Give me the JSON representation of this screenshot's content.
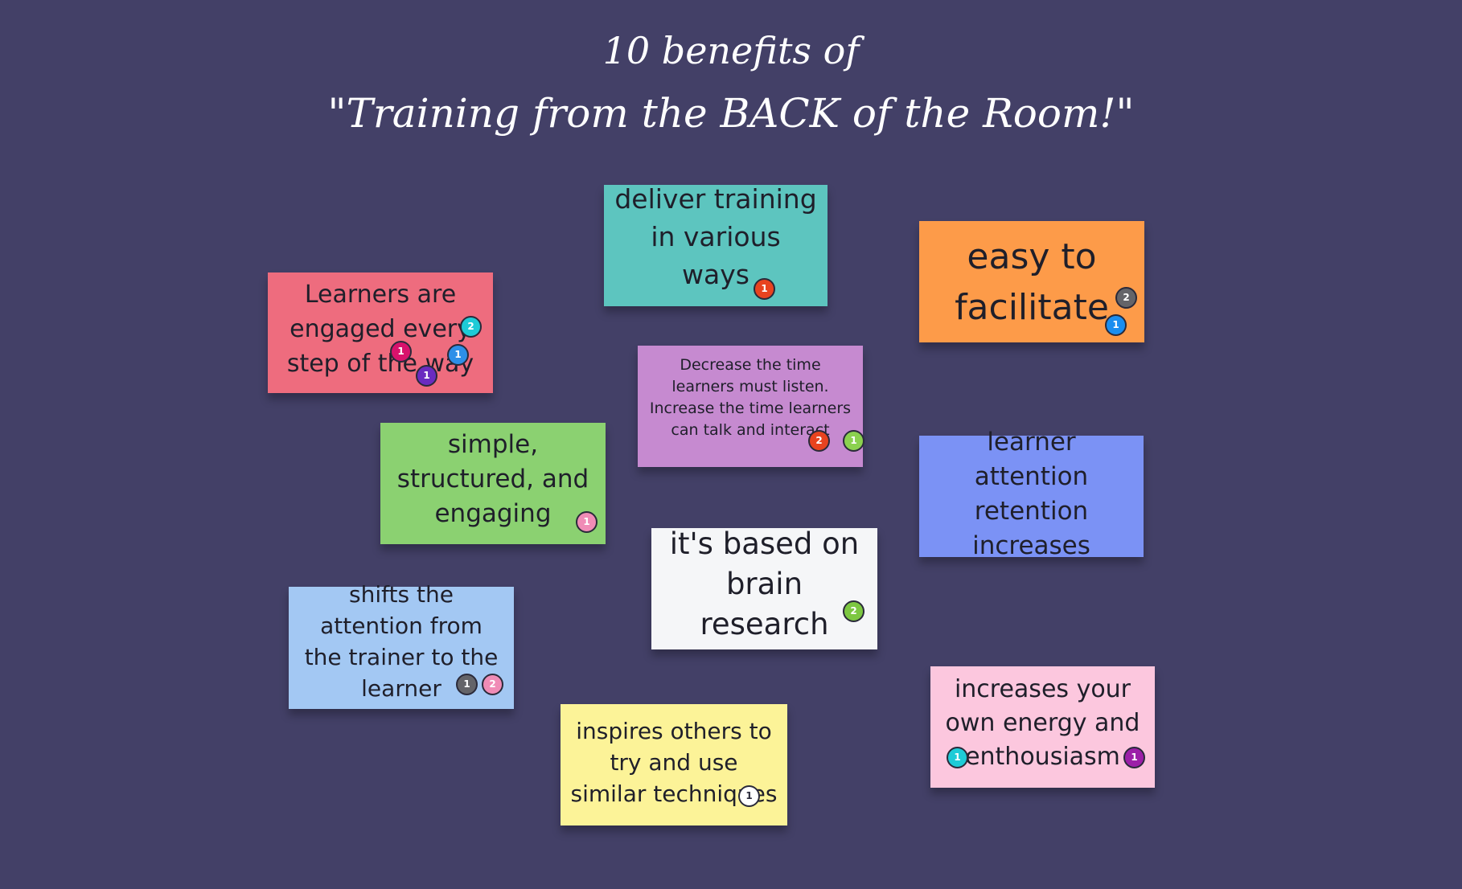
{
  "title": {
    "line1": "10 benefits of",
    "line2": "\"Training from the BACK of the Room!\""
  },
  "colors": {
    "background": "#434067",
    "note_red": "#ee6c7e",
    "note_teal": "#5dc5bf",
    "note_orange": "#fd9b49",
    "note_purple": "#c68ad0",
    "note_green": "#8bd171",
    "note_blue": "#7b92f5",
    "note_white": "#f5f6f8",
    "note_lightblue": "#a3c8f3",
    "note_yellow": "#fcf398",
    "note_pink": "#fcc7de"
  },
  "notes": [
    {
      "text": "Learners are engaged every step of the way",
      "color": "#ee6c7e",
      "votes": [
        {
          "label": "2",
          "color": "#1ecbd7"
        },
        {
          "label": "1",
          "color": "#d8126c"
        },
        {
          "label": "1",
          "color": "#2d8fe8"
        },
        {
          "label": "1",
          "color": "#6a2bc0"
        }
      ]
    },
    {
      "text": "deliver training in various ways",
      "color": "#5dc5bf",
      "votes": [
        {
          "label": "1",
          "color": "#e8431f"
        }
      ]
    },
    {
      "text": "easy to facilitate",
      "color": "#fd9b49",
      "votes": [
        {
          "label": "2",
          "color": "#646469"
        },
        {
          "label": "1",
          "color": "#1a8ef0"
        }
      ]
    },
    {
      "text": "Decrease the time learners must listen. Increase the time learners can talk and interact",
      "color": "#c68ad0",
      "votes": [
        {
          "label": "2",
          "color": "#e8431f"
        },
        {
          "label": "1",
          "color": "#8bd14f"
        }
      ]
    },
    {
      "text": "simple, structured, and engaging",
      "color": "#8bd171",
      "votes": [
        {
          "label": "1",
          "color": "#f08cb6"
        }
      ]
    },
    {
      "text": "learner attention retention increases",
      "color": "#7b92f5",
      "votes": []
    },
    {
      "text": "it's based on brain research",
      "color": "#f5f6f8",
      "votes": [
        {
          "label": "2",
          "color": "#7dc742"
        }
      ]
    },
    {
      "text": "shifts the attention from the trainer to the learner",
      "color": "#a3c8f3",
      "votes": [
        {
          "label": "1",
          "color": "#646469"
        },
        {
          "label": "2",
          "color": "#f08cb6"
        }
      ]
    },
    {
      "text": "inspires others to try and use similar techniques",
      "color": "#fcf398",
      "votes": [
        {
          "label": "1",
          "color": "#ffffff"
        }
      ]
    },
    {
      "text": "increases your own energy and enthousiasm",
      "color": "#fcc7de",
      "votes": [
        {
          "label": "1",
          "color": "#1ecbd7"
        },
        {
          "label": "1",
          "color": "#9c1fa8"
        }
      ]
    }
  ]
}
